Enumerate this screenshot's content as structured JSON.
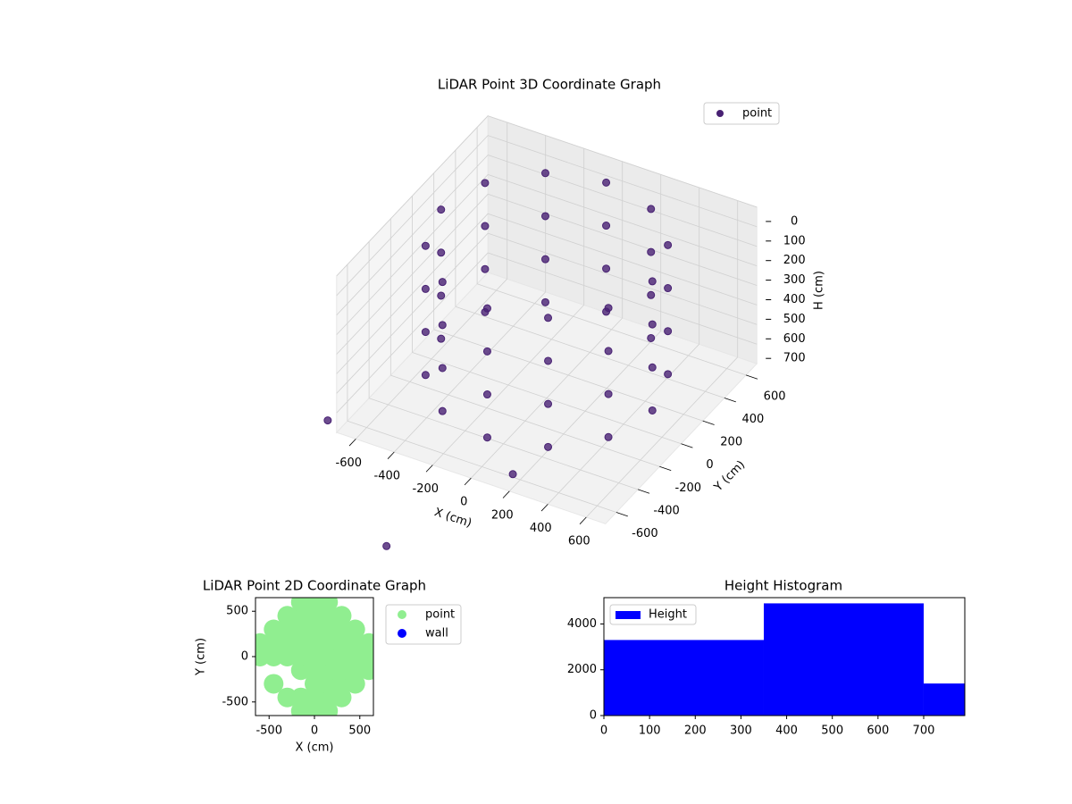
{
  "chart_data": [
    {
      "type": "scatter3d",
      "title": "LiDAR Point 3D Coordinate Graph",
      "xlabel": "X (cm)",
      "ylabel": "Y (cm)",
      "zlabel": "H (cm)",
      "xlim": [
        -700,
        700
      ],
      "ylim": [
        -700,
        700
      ],
      "zlim": [
        0,
        800
      ],
      "z_inverted": true,
      "grid": true,
      "legend": "upper right",
      "xticks": [
        -600,
        -400,
        -200,
        0,
        200,
        400,
        600
      ],
      "yticks": [
        -600,
        -400,
        -200,
        0,
        200,
        400,
        600
      ],
      "zticks": [
        0,
        100,
        200,
        300,
        400,
        500,
        600,
        700
      ],
      "series": [
        {
          "name": "point",
          "color": "#482173",
          "x": [
            550,
            476,
            275,
            0,
            -275,
            -476,
            -550,
            -476,
            -275,
            0,
            275,
            476,
            550,
            476,
            275,
            0,
            -275,
            -476,
            -550,
            -476,
            -275,
            0,
            275,
            476,
            550,
            476,
            275,
            0,
            -275,
            -476,
            -550,
            -476,
            -275,
            0,
            275,
            476,
            550,
            476,
            275,
            0,
            -275,
            -476,
            -550,
            -476,
            -275,
            0,
            275,
            476,
            150,
            -780,
            -80
          ],
          "y": [
            0,
            275,
            476,
            550,
            476,
            275,
            0,
            -275,
            -476,
            -550,
            -476,
            -275,
            0,
            275,
            476,
            550,
            476,
            275,
            0,
            -275,
            -476,
            -550,
            -476,
            -275,
            0,
            275,
            476,
            550,
            476,
            275,
            0,
            -275,
            -476,
            -550,
            -476,
            -275,
            0,
            275,
            476,
            550,
            476,
            275,
            0,
            -275,
            -476,
            -550,
            -476,
            -275,
            -580,
            -640,
            -1340
          ],
          "z": [
            20,
            20,
            20,
            20,
            20,
            20,
            20,
            20,
            20,
            20,
            20,
            20,
            240,
            240,
            240,
            240,
            240,
            240,
            240,
            240,
            240,
            240,
            240,
            240,
            460,
            460,
            460,
            460,
            460,
            460,
            460,
            460,
            460,
            460,
            460,
            460,
            680,
            680,
            680,
            680,
            680,
            680,
            680,
            680,
            680,
            680,
            680,
            680,
            800,
            800,
            800
          ]
        }
      ]
    },
    {
      "type": "scatter",
      "title": "LiDAR Point 2D Coordinate Graph",
      "xlabel": "X (cm)",
      "ylabel": "Y (cm)",
      "xlim": [
        -650,
        650
      ],
      "ylim": [
        -650,
        650
      ],
      "xticks": [
        -500,
        0,
        500
      ],
      "yticks": [
        -500,
        0,
        500
      ],
      "legend": "outside right",
      "series": [
        {
          "name": "point",
          "color": "#90ee90",
          "x": [
            -600,
            -600,
            -450,
            -450,
            -450,
            -450,
            -300,
            -300,
            -300,
            -300,
            -300,
            -150,
            -150,
            -150,
            -150,
            -150,
            -150,
            -150,
            -150,
            0,
            0,
            0,
            0,
            0,
            0,
            0,
            0,
            0,
            150,
            150,
            150,
            150,
            150,
            150,
            150,
            150,
            150,
            300,
            300,
            300,
            300,
            300,
            300,
            300,
            450,
            450,
            450,
            450,
            450,
            600,
            600,
            600
          ],
          "y": [
            0,
            150,
            -300,
            0,
            150,
            300,
            -450,
            0,
            150,
            300,
            450,
            -600,
            -450,
            -150,
            0,
            150,
            300,
            450,
            600,
            -600,
            -450,
            -300,
            -150,
            0,
            150,
            300,
            450,
            600,
            -600,
            -450,
            -300,
            -150,
            0,
            150,
            300,
            450,
            600,
            -450,
            -300,
            -150,
            0,
            150,
            300,
            450,
            -300,
            -150,
            0,
            150,
            300,
            -150,
            0,
            150
          ]
        },
        {
          "name": "wall",
          "color": "#0000ff",
          "x": [],
          "y": []
        }
      ]
    },
    {
      "type": "histogram",
      "title": "Height Histogram",
      "xlim": [
        0,
        790
      ],
      "ylim": [
        0,
        5150
      ],
      "xticks": [
        0,
        100,
        200,
        300,
        400,
        500,
        600,
        700
      ],
      "yticks": [
        0,
        2000,
        4000
      ],
      "legend": "upper left",
      "series": [
        {
          "name": "Height",
          "color": "#0000ff",
          "bins": [
            0,
            350,
            700,
            790
          ],
          "values": [
            3300,
            4900,
            1400
          ]
        }
      ]
    }
  ]
}
